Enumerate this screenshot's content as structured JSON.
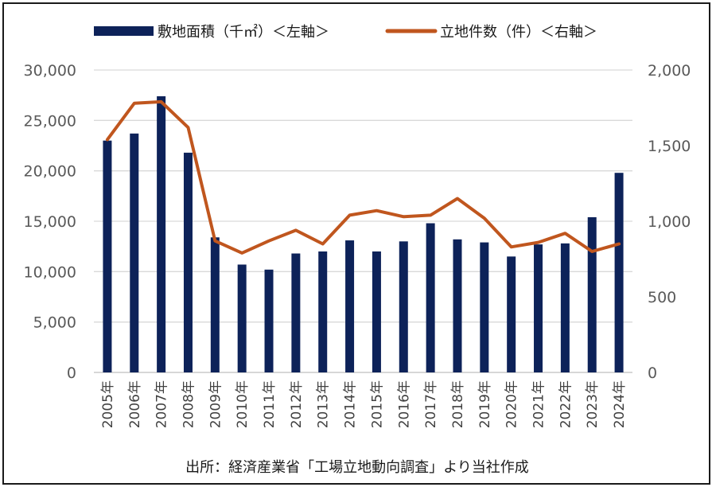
{
  "chart_data": {
    "type": "bar+line",
    "categories": [
      "2005年",
      "2006年",
      "2007年",
      "2008年",
      "2009年",
      "2010年",
      "2011年",
      "2012年",
      "2013年",
      "2014年",
      "2015年",
      "2016年",
      "2017年",
      "2018年",
      "2019年",
      "2020年",
      "2021年",
      "2022年",
      "2023年",
      "2024年"
    ],
    "series": [
      {
        "name": "敷地面積（千㎡）＜左軸＞",
        "type": "bar",
        "axis": "left",
        "color": "#0d2259",
        "values": [
          23000,
          23700,
          27400,
          21800,
          13400,
          10700,
          10200,
          11800,
          12000,
          13100,
          12000,
          13000,
          14800,
          13200,
          12900,
          11500,
          12700,
          12800,
          15400,
          19800
        ]
      },
      {
        "name": "立地件数（件）＜右軸＞",
        "type": "line",
        "axis": "right",
        "color": "#c0561e",
        "values": [
          1540,
          1780,
          1790,
          1620,
          870,
          790,
          870,
          940,
          850,
          1040,
          1070,
          1030,
          1040,
          1150,
          1020,
          830,
          860,
          920,
          800,
          850
        ]
      }
    ],
    "yleft": {
      "min": 0,
      "max": 30000,
      "ticks": [
        "0",
        "5,000",
        "10,000",
        "15,000",
        "20,000",
        "25,000",
        "30,000"
      ]
    },
    "yright": {
      "min": 0,
      "max": 2000,
      "ticks": [
        "0",
        "500",
        "1,000",
        "1,500",
        "2,000"
      ]
    },
    "grid": true,
    "legend_position": "top",
    "caption": "出所：経済産業省「工場立地動向調査」より当社作成"
  }
}
